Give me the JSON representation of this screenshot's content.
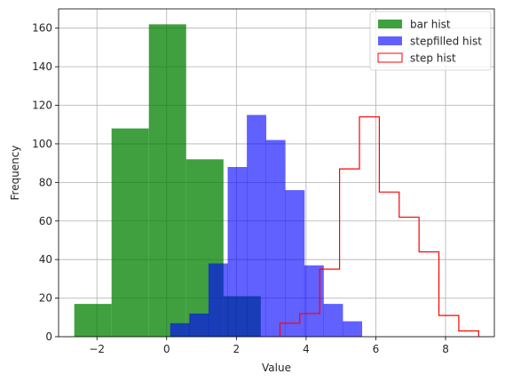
{
  "chart_data": {
    "type": "bar",
    "xlabel": "Value",
    "ylabel": "Frequency",
    "xlim": [
      -3.1,
      9.4
    ],
    "ylim": [
      0,
      170
    ],
    "xticks": [
      -2,
      0,
      2,
      4,
      6,
      8
    ],
    "yticks": [
      0,
      20,
      40,
      60,
      80,
      100,
      120,
      140,
      160
    ],
    "grid": true,
    "legend_position": "top-right",
    "series": [
      {
        "name": "bar hist",
        "style": "bar",
        "color": "#008000",
        "alpha": 0.75,
        "edges": [
          -2.65,
          -1.58,
          -0.51,
          0.56,
          1.63,
          2.7
        ],
        "counts": [
          17,
          108,
          162,
          92,
          21
        ]
      },
      {
        "name": "stepfilled hist",
        "style": "stepfilled",
        "color": "#0000ff",
        "alpha": 0.62,
        "edges": [
          0.1,
          0.65,
          1.2,
          1.75,
          2.3,
          2.85,
          3.4,
          3.95,
          4.5,
          5.05,
          5.6
        ],
        "counts": [
          7,
          12,
          38,
          88,
          115,
          102,
          76,
          37,
          17,
          8
        ]
      },
      {
        "name": "step hist",
        "style": "step",
        "color": "#ff0000",
        "edges": [
          3.25,
          3.82,
          4.39,
          4.96,
          5.53,
          6.1,
          6.67,
          7.24,
          7.81,
          8.38,
          8.95
        ],
        "counts": [
          7,
          12,
          35,
          87,
          114,
          75,
          62,
          44,
          11,
          3
        ]
      }
    ]
  }
}
